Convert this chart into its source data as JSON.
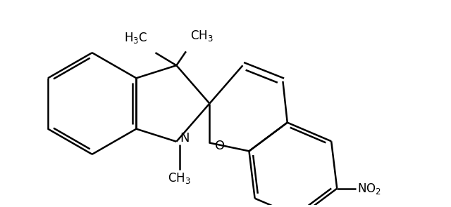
{
  "background_color": "#ffffff",
  "line_color": "#000000",
  "line_width": 1.8,
  "figsize": [
    6.4,
    2.95
  ],
  "dpi": 100,
  "xlim": [
    -3.0,
    3.5
  ],
  "ylim": [
    -1.6,
    1.6
  ]
}
